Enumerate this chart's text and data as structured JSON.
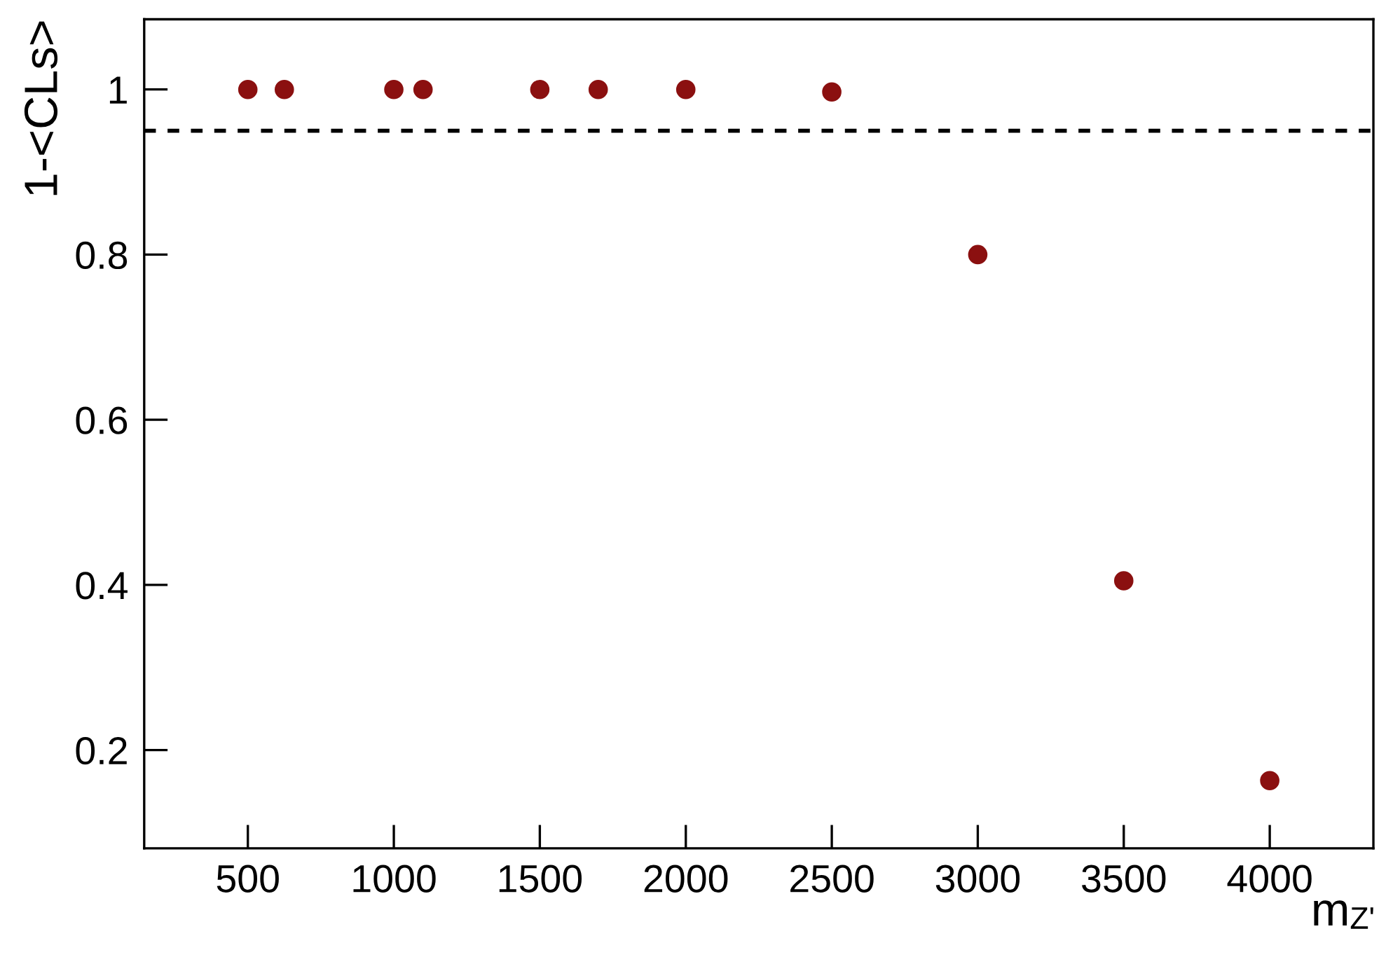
{
  "chart_data": {
    "type": "scatter",
    "xlabel": "m$_{Z'}$",
    "ylabel": "1-<CLs>",
    "x": [
      500,
      625,
      1000,
      1100,
      1500,
      1700,
      2000,
      2500,
      3000,
      3500,
      4000
    ],
    "series": [
      {
        "color": "#8b1010",
        "values": [
          1.0,
          1.0,
          1.0,
          1.0,
          1.0,
          1.0,
          1.0,
          0.997,
          0.8,
          0.405,
          0.163
        ]
      }
    ],
    "marker": "circle",
    "xlim": [
      145,
      4355
    ],
    "xticks": [
      500,
      1000,
      1500,
      2000,
      2500,
      3000,
      3500,
      4000
    ],
    "ylim": [
      0.081,
      1.085
    ],
    "yticks": [
      0.2,
      0.4,
      0.6,
      0.8,
      1
    ],
    "ref_lines": [
      {
        "axis": "y",
        "value": 0.95,
        "color": "#000000",
        "line_style": "dashed"
      }
    ],
    "grid": false,
    "legend": false
  }
}
